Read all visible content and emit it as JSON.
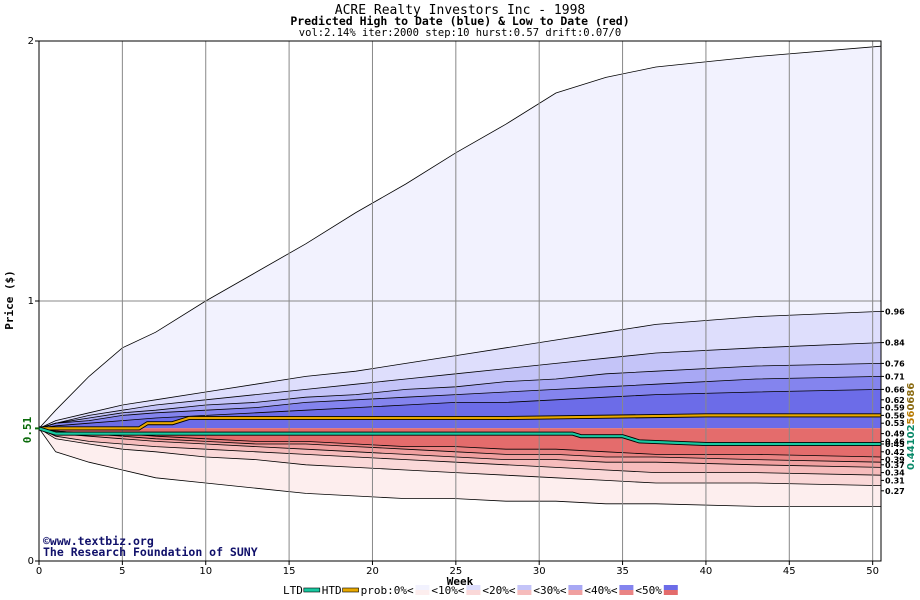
{
  "chart_data": {
    "type": "area",
    "title": "ACRE Realty Investors Inc - 1998",
    "subtitle": "Predicted High to Date (blue) &  Low to Date (red)",
    "params": "vol:2.14% iter:2000 step:10 hurst:0.57 drift:0.07/0",
    "xlabel": "Week",
    "ylabel": "Price ($)",
    "xlim": [
      0,
      50.5
    ],
    "ylim": [
      0,
      2
    ],
    "x_ticks": [
      0,
      5,
      10,
      15,
      20,
      25,
      30,
      35,
      40,
      45,
      50
    ],
    "y_ticks": [
      0,
      1,
      2
    ],
    "start_price": "0.51",
    "start_price_value": 0.51,
    "watermark": [
      "©www.textbiz.org",
      "The Research Foundation of SUNY"
    ],
    "right_labels": [
      "0.96",
      "0.84",
      "0.76",
      "0.71",
      "0.66",
      "0.62",
      "0.59",
      "0.56",
      "0.53",
      "0.49",
      "0.46",
      "0.45",
      "0.42",
      "0.39",
      "0.37",
      "0.34",
      "0.31",
      "0.27"
    ],
    "side_values": [
      "0.44102",
      "56",
      "0686"
    ],
    "high_bands": [
      {
        "name": "prob:0%",
        "color": "#f2f2fe",
        "values": [
          0.51,
          0.58,
          0.71,
          0.82,
          0.88,
          1.0,
          1.11,
          1.22,
          1.34,
          1.45,
          1.57,
          1.68,
          1.8,
          1.86,
          1.9,
          1.94,
          1.98
        ]
      },
      {
        "name": "<10%",
        "color": "#dedefc",
        "values": [
          0.51,
          0.54,
          0.57,
          0.6,
          0.62,
          0.65,
          0.68,
          0.71,
          0.73,
          0.76,
          0.79,
          0.82,
          0.85,
          0.88,
          0.91,
          0.94,
          0.96
        ]
      },
      {
        "name": "<20%",
        "color": "#c4c4f8",
        "values": [
          0.51,
          0.53,
          0.56,
          0.58,
          0.6,
          0.62,
          0.64,
          0.66,
          0.68,
          0.7,
          0.72,
          0.74,
          0.76,
          0.78,
          0.8,
          0.82,
          0.84
        ]
      },
      {
        "name": "<30%",
        "color": "#a8a8f4",
        "values": [
          0.51,
          0.53,
          0.55,
          0.57,
          0.58,
          0.6,
          0.61,
          0.63,
          0.64,
          0.66,
          0.67,
          0.69,
          0.7,
          0.72,
          0.73,
          0.75,
          0.76
        ]
      },
      {
        "name": "<40%",
        "color": "#8484ee",
        "values": [
          0.51,
          0.53,
          0.54,
          0.56,
          0.57,
          0.58,
          0.59,
          0.61,
          0.62,
          0.63,
          0.64,
          0.65,
          0.66,
          0.67,
          0.68,
          0.7,
          0.71
        ]
      },
      {
        "name": "<50%",
        "color": "#6c6ce8",
        "values": [
          0.51,
          0.52,
          0.53,
          0.54,
          0.55,
          0.56,
          0.57,
          0.58,
          0.59,
          0.6,
          0.61,
          0.61,
          0.62,
          0.63,
          0.64,
          0.65,
          0.66
        ]
      }
    ],
    "low_bands": [
      {
        "name": "prob:0%",
        "color": "#fdeeee",
        "values": [
          0.51,
          0.42,
          0.38,
          0.35,
          0.32,
          0.3,
          0.28,
          0.26,
          0.25,
          0.24,
          0.24,
          0.23,
          0.23,
          0.22,
          0.22,
          0.21,
          0.21
        ]
      },
      {
        "name": "<10%",
        "color": "#fad8d8",
        "values": [
          0.51,
          0.47,
          0.45,
          0.43,
          0.42,
          0.4,
          0.39,
          0.37,
          0.36,
          0.35,
          0.34,
          0.33,
          0.32,
          0.31,
          0.3,
          0.3,
          0.29
        ]
      },
      {
        "name": "<20%",
        "color": "#f6bcbc",
        "values": [
          0.51,
          0.48,
          0.46,
          0.45,
          0.44,
          0.43,
          0.42,
          0.41,
          0.4,
          0.39,
          0.38,
          0.37,
          0.36,
          0.35,
          0.34,
          0.34,
          0.33
        ]
      },
      {
        "name": "<30%",
        "color": "#f0a0a0",
        "values": [
          0.51,
          0.49,
          0.48,
          0.47,
          0.46,
          0.45,
          0.44,
          0.43,
          0.42,
          0.41,
          0.4,
          0.39,
          0.39,
          0.38,
          0.38,
          0.37,
          0.36
        ]
      },
      {
        "name": "<40%",
        "color": "#ea8484",
        "values": [
          0.51,
          0.5,
          0.49,
          0.48,
          0.47,
          0.46,
          0.45,
          0.45,
          0.44,
          0.43,
          0.42,
          0.41,
          0.41,
          0.4,
          0.4,
          0.39,
          0.38
        ]
      },
      {
        "name": "<50%",
        "color": "#e46c6c",
        "values": [
          0.51,
          0.5,
          0.49,
          0.49,
          0.48,
          0.47,
          0.46,
          0.46,
          0.45,
          0.44,
          0.44,
          0.43,
          0.43,
          0.42,
          0.41,
          0.41,
          0.4
        ]
      }
    ],
    "band_x": [
      0,
      1,
      3,
      5,
      7,
      10,
      13,
      16,
      19,
      22,
      25,
      28,
      31,
      34,
      37,
      43,
      50.5
    ],
    "htd_line": {
      "name": "HTD",
      "color": "#e8a800",
      "x": [
        0,
        2,
        4,
        6,
        6.5,
        8,
        9,
        20,
        28,
        40,
        50.5
      ],
      "y": [
        0.51,
        0.51,
        0.51,
        0.51,
        0.53,
        0.53,
        0.55,
        0.55,
        0.55,
        0.56,
        0.56
      ]
    },
    "ltd_line": {
      "name": "LTD",
      "color": "#18c8a0",
      "x": [
        0,
        1,
        3,
        6,
        10,
        20,
        32,
        32.5,
        35,
        36,
        40,
        50.5
      ],
      "y": [
        0.51,
        0.49,
        0.49,
        0.49,
        0.49,
        0.49,
        0.49,
        0.48,
        0.48,
        0.46,
        0.45,
        0.45
      ]
    },
    "legend": [
      {
        "label": "LTD",
        "kind": "line",
        "color": "#18c8a0"
      },
      {
        "label": "HTD",
        "kind": "line",
        "color": "#e8a800"
      },
      {
        "label": "prob:0%<",
        "kind": "pair",
        "colors": [
          "#f2f2fe",
          "#fdeeee"
        ]
      },
      {
        "label": "<10%<",
        "kind": "pair",
        "colors": [
          "#dedefc",
          "#fad8d8"
        ]
      },
      {
        "label": "<20%<",
        "kind": "pair",
        "colors": [
          "#c4c4f8",
          "#f6bcbc"
        ]
      },
      {
        "label": "<30%<",
        "kind": "pair",
        "colors": [
          "#a8a8f4",
          "#f0a0a0"
        ]
      },
      {
        "label": "<40%<",
        "kind": "pair",
        "colors": [
          "#8484ee",
          "#ea8484"
        ]
      },
      {
        "label": "<50%",
        "kind": "pair",
        "colors": [
          "#6c6ce8",
          "#e46c6c"
        ]
      }
    ]
  }
}
